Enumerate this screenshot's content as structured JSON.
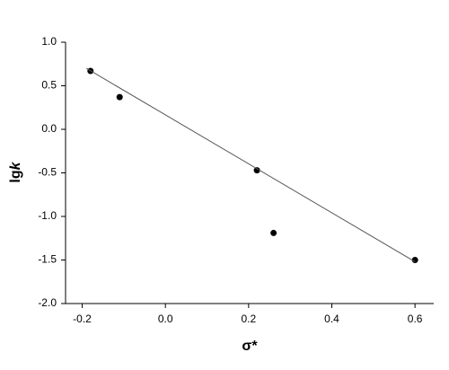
{
  "chart_data": {
    "type": "scatter",
    "x_label": "σ*",
    "y_label_parts": [
      "lg",
      "k"
    ],
    "xlim": [
      -0.24,
      0.645
    ],
    "ylim": [
      -2.0,
      1.0
    ],
    "xticks": [
      -0.2,
      {
        "value": 0,
        "label": "0.0"
      },
      0.2,
      0.4,
      0.6
    ],
    "yticks": [
      {
        "value": 1,
        "label": "1.0"
      },
      0.5,
      {
        "value": 0,
        "label": "0.0"
      },
      -0.5,
      {
        "value": -1,
        "label": "-1.0"
      },
      -1.5,
      {
        "value": -2,
        "label": "-2.0"
      }
    ],
    "series": [
      {
        "kind": "points",
        "color": "#000000",
        "x": [
          -0.18,
          -0.11,
          0.22,
          0.26,
          0.6
        ],
        "values": [
          0.67,
          0.37,
          -0.47,
          -1.19,
          -1.5
        ]
      },
      {
        "kind": "line",
        "color": "#555555",
        "x": [
          -0.19,
          0.6
        ],
        "values": [
          0.7,
          -1.52
        ]
      }
    ]
  }
}
